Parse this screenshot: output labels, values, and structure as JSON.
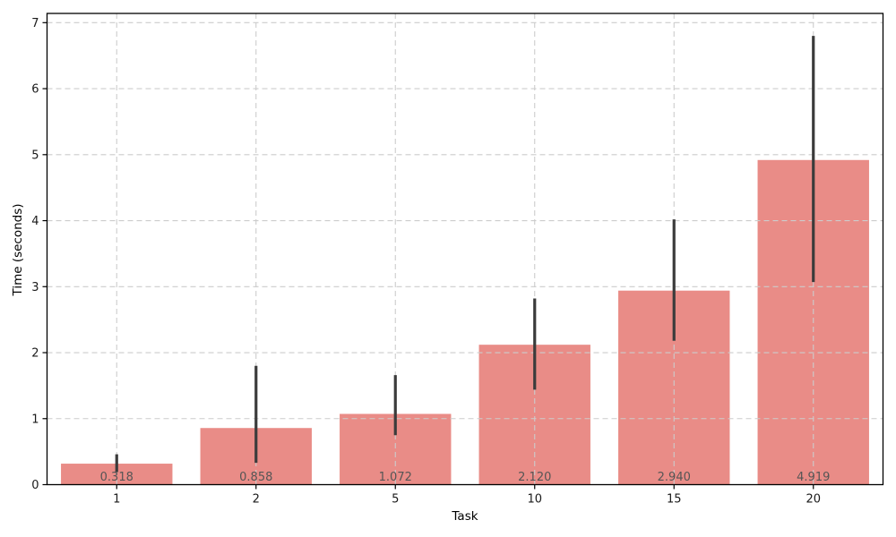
{
  "chart_data": {
    "type": "bar",
    "title": "",
    "xlabel": "Task",
    "ylabel": "Time (seconds)",
    "categories": [
      "1",
      "2",
      "5",
      "10",
      "15",
      "20"
    ],
    "values": [
      0.318,
      0.858,
      1.072,
      2.12,
      2.94,
      4.919
    ],
    "bar_labels": [
      "0.318",
      "0.858",
      "1.072",
      "2.120",
      "2.940",
      "4.919"
    ],
    "error_low": [
      0.19,
      0.33,
      0.75,
      1.44,
      2.18,
      3.07
    ],
    "error_high": [
      0.46,
      1.8,
      1.66,
      2.82,
      4.02,
      6.8
    ],
    "yticks": [
      0,
      1,
      2,
      3,
      4,
      5,
      6,
      7
    ],
    "ylim": [
      0,
      7.14
    ],
    "grid": "dashed, horizontal and vertical",
    "legend": "none",
    "error_bar_caps": "none",
    "colors": {
      "bar": "#e98c87",
      "error": "#3b3b3b",
      "grid": "#cccccc",
      "bar_label_text": "#555555",
      "tick_text": "#1a1a1a",
      "spine": "#000000",
      "background": "#ffffff"
    }
  }
}
